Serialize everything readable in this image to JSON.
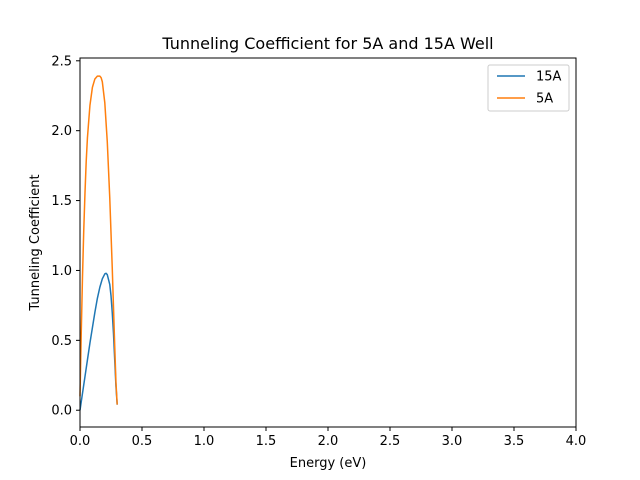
{
  "chart_data": {
    "type": "line",
    "title": "Tunneling Coefficient for 5A and 15A Well",
    "xlabel": "Energy (eV)",
    "ylabel": "Tunneling Coefficient",
    "xlim": [
      0.0,
      4.0
    ],
    "ylim": [
      -0.12,
      2.52
    ],
    "xticks": [
      0.0,
      0.5,
      1.0,
      1.5,
      2.0,
      2.5,
      3.0,
      3.5,
      4.0
    ],
    "xtick_labels": [
      "0.0",
      "0.5",
      "1.0",
      "1.5",
      "2.0",
      "2.5",
      "3.0",
      "3.5",
      "4.0"
    ],
    "yticks": [
      0.0,
      0.5,
      1.0,
      1.5,
      2.0,
      2.5
    ],
    "ytick_labels": [
      "0.0",
      "0.5",
      "1.0",
      "1.5",
      "2.0",
      "2.5"
    ],
    "grid": false,
    "legend_position": "top-right",
    "series": [
      {
        "name": "15A",
        "color": "#1f77b4",
        "x": [
          0.0,
          0.02,
          0.04,
          0.06,
          0.08,
          0.1,
          0.12,
          0.14,
          0.16,
          0.18,
          0.2,
          0.21,
          0.22,
          0.24,
          0.25,
          0.26,
          0.27,
          0.28,
          0.29,
          0.3
        ],
        "y": [
          0.0,
          0.12,
          0.24,
          0.36,
          0.48,
          0.59,
          0.7,
          0.8,
          0.88,
          0.94,
          0.975,
          0.98,
          0.97,
          0.9,
          0.82,
          0.7,
          0.55,
          0.36,
          0.17,
          0.04
        ]
      },
      {
        "name": "5A",
        "color": "#ff7f0e",
        "x": [
          0.0,
          0.01,
          0.02,
          0.03,
          0.04,
          0.05,
          0.06,
          0.08,
          0.1,
          0.12,
          0.14,
          0.16,
          0.17,
          0.18,
          0.2,
          0.22,
          0.24,
          0.26,
          0.27,
          0.28,
          0.29,
          0.3
        ],
        "y": [
          0.1,
          0.55,
          0.95,
          1.28,
          1.55,
          1.78,
          1.95,
          2.18,
          2.31,
          2.37,
          2.39,
          2.39,
          2.38,
          2.35,
          2.2,
          1.92,
          1.52,
          1.02,
          0.74,
          0.46,
          0.2,
          0.04
        ]
      }
    ]
  }
}
